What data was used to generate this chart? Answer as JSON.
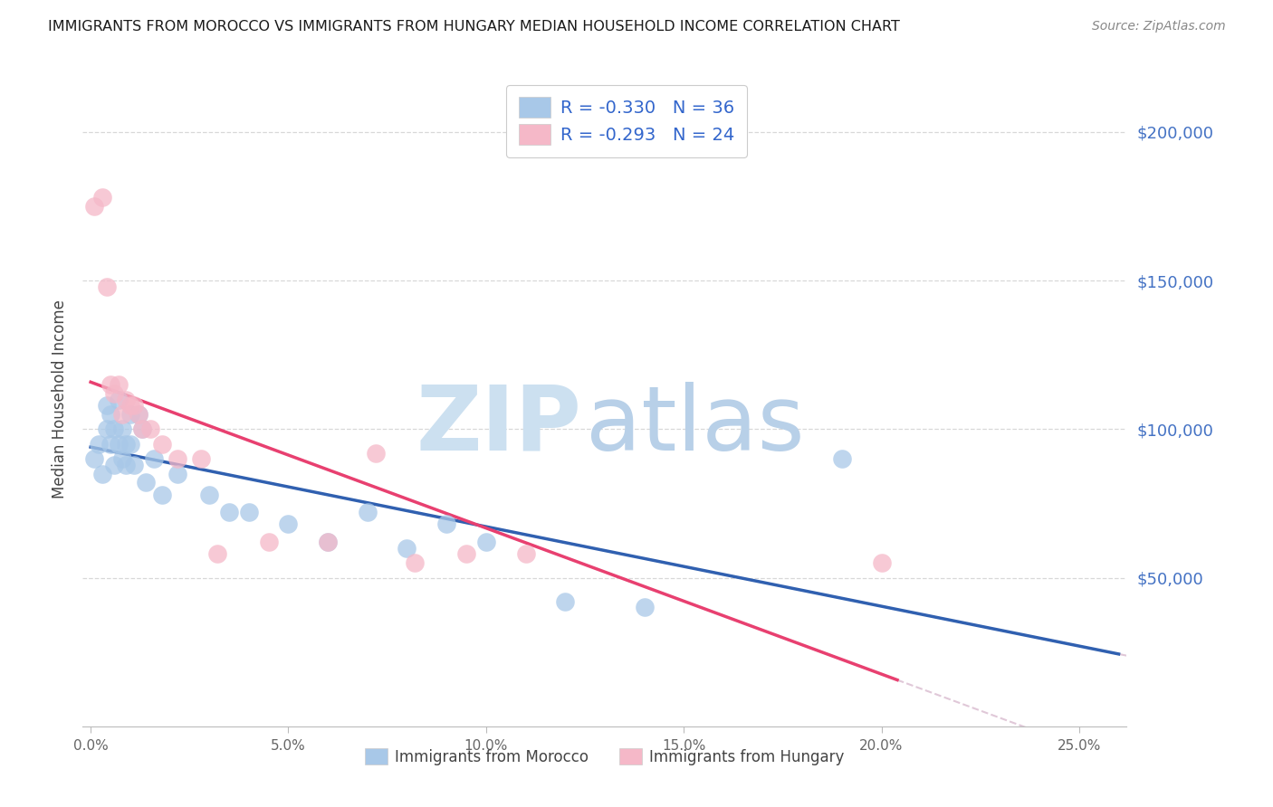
{
  "title": "IMMIGRANTS FROM MOROCCO VS IMMIGRANTS FROM HUNGARY MEDIAN HOUSEHOLD INCOME CORRELATION CHART",
  "source": "Source: ZipAtlas.com",
  "ylabel": "Median Household Income",
  "xlabel_ticks": [
    "0.0%",
    "5.0%",
    "10.0%",
    "15.0%",
    "20.0%",
    "25.0%"
  ],
  "xlabel_vals": [
    0.0,
    0.05,
    0.1,
    0.15,
    0.2,
    0.25
  ],
  "ylim": [
    0,
    220000
  ],
  "xlim": [
    -0.002,
    0.262
  ],
  "yticks": [
    0,
    50000,
    100000,
    150000,
    200000
  ],
  "ytick_right": [
    "",
    "$50,000",
    "$100,000",
    "$150,000",
    "$200,000"
  ],
  "morocco_R": -0.33,
  "morocco_N": 36,
  "hungary_R": -0.293,
  "hungary_N": 24,
  "morocco_color": "#a8c8e8",
  "hungary_color": "#f5b8c8",
  "morocco_line_color": "#3060b0",
  "hungary_line_color": "#e84070",
  "dashed_color": "#e0c8d8",
  "grid_color": "#d8d8d8",
  "right_axis_color": "#4472c4",
  "legend_text_black": "#333333",
  "legend_R_color": "#3366cc",
  "legend_N_color": "#3366cc",
  "morocco_x": [
    0.001,
    0.002,
    0.003,
    0.004,
    0.004,
    0.005,
    0.005,
    0.006,
    0.006,
    0.007,
    0.007,
    0.008,
    0.008,
    0.009,
    0.009,
    0.01,
    0.01,
    0.011,
    0.012,
    0.013,
    0.014,
    0.016,
    0.018,
    0.022,
    0.03,
    0.035,
    0.04,
    0.05,
    0.06,
    0.07,
    0.08,
    0.09,
    0.1,
    0.12,
    0.14,
    0.19
  ],
  "morocco_y": [
    90000,
    95000,
    85000,
    100000,
    108000,
    95000,
    105000,
    88000,
    100000,
    95000,
    110000,
    90000,
    100000,
    95000,
    88000,
    105000,
    95000,
    88000,
    105000,
    100000,
    82000,
    90000,
    78000,
    85000,
    78000,
    72000,
    72000,
    68000,
    62000,
    72000,
    60000,
    68000,
    62000,
    42000,
    40000,
    90000
  ],
  "hungary_x": [
    0.001,
    0.003,
    0.004,
    0.005,
    0.006,
    0.007,
    0.008,
    0.009,
    0.01,
    0.011,
    0.012,
    0.013,
    0.015,
    0.018,
    0.022,
    0.028,
    0.032,
    0.045,
    0.06,
    0.072,
    0.082,
    0.095,
    0.11,
    0.2
  ],
  "hungary_y": [
    175000,
    178000,
    148000,
    115000,
    112000,
    115000,
    105000,
    110000,
    108000,
    108000,
    105000,
    100000,
    100000,
    95000,
    90000,
    90000,
    58000,
    62000,
    62000,
    92000,
    55000,
    58000,
    58000,
    55000
  ]
}
